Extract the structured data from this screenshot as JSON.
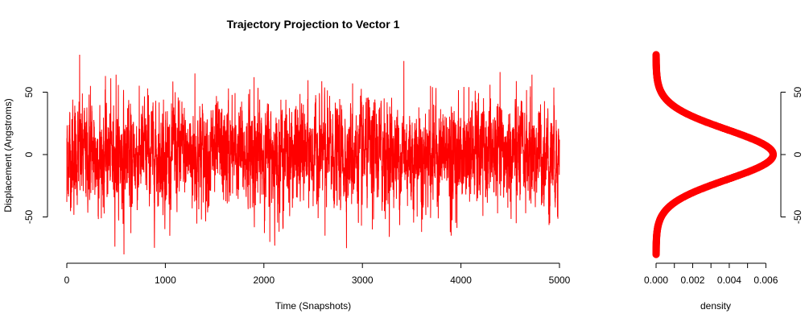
{
  "chart_data": [
    {
      "type": "line",
      "title": "Trajectory Projection to Vector 1",
      "xlabel": "Time (Snapshots)",
      "ylabel": "Displacement (Angstroms)",
      "xlim": [
        0,
        5000
      ],
      "ylim": [
        -80,
        80
      ],
      "x_ticks": [
        0,
        1000,
        2000,
        3000,
        4000,
        5000
      ],
      "x_tick_labels": [
        "0",
        "1000",
        "2000",
        "3000",
        "4000",
        "5000"
      ],
      "y_ticks": [
        -50,
        0,
        50
      ],
      "y_tick_labels": [
        "-50",
        "0",
        "50"
      ],
      "grid": false,
      "series": [
        {
          "color": "#ff0000",
          "n_points": 5000,
          "mean": 0,
          "sd": 20,
          "min": -80,
          "max": 80,
          "x": [
            0,
            60,
            130,
            240,
            330,
            500,
            580,
            650,
            820,
            1000,
            1100,
            1300,
            1500,
            1640,
            1900,
            2060,
            2110,
            2400,
            2620,
            2900,
            2990,
            3100,
            3220,
            3420,
            3600,
            3690,
            3900,
            4080,
            4300,
            4560,
            4720,
            4900,
            4970,
            5000
          ],
          "y": [
            -38,
            44,
            80,
            55,
            -20,
            64,
            -80,
            -63,
            53,
            -37,
            50,
            65,
            -30,
            53,
            62,
            -70,
            -73,
            40,
            -65,
            57,
            -57,
            -60,
            45,
            75,
            -62,
            55,
            -65,
            54,
            45,
            -55,
            64,
            -55,
            15,
            12
          ]
        }
      ]
    },
    {
      "type": "line",
      "orientation": "vertical",
      "xlabel": "density",
      "xlim": [
        0,
        0.0066
      ],
      "ylim": [
        -80,
        80
      ],
      "x_ticks": [
        0,
        0.002,
        0.004,
        0.006
      ],
      "x_tick_labels": [
        "0.000",
        "0.002",
        "0.004",
        "0.006"
      ],
      "y_ticks": [
        -50,
        0,
        50
      ],
      "y_tick_labels": [
        "-50",
        "0",
        "50"
      ],
      "y_axis_side": "right",
      "grid": false,
      "series": [
        {
          "color": "#ff0000",
          "marker": "circle",
          "density_mean": 0,
          "density_sd": 20,
          "peak_density": 0.0064,
          "y_range": [
            -80,
            80
          ]
        }
      ]
    }
  ]
}
